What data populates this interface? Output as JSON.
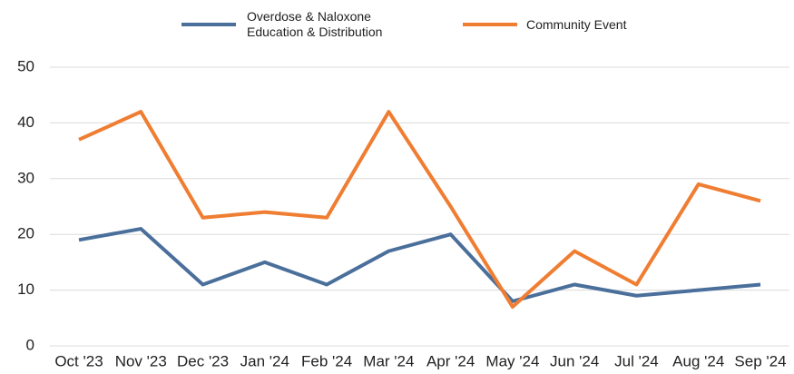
{
  "chart_data": {
    "type": "line",
    "categories": [
      "Oct '23",
      "Nov '23",
      "Dec '23",
      "Jan '24",
      "Feb '24",
      "Mar '24",
      "Apr '24",
      "May '24",
      "Jun '24",
      "Jul '24",
      "Aug '24",
      "Sep '24"
    ],
    "series": [
      {
        "name": "Overdose & Naloxone\nEducation & Distribution",
        "color": "#4a6f9b",
        "values": [
          19,
          21,
          11,
          15,
          11,
          17,
          20,
          8,
          11,
          9,
          10,
          11
        ]
      },
      {
        "name": "Community Event",
        "color": "#ef7d32",
        "values": [
          37,
          42,
          23,
          24,
          23,
          42,
          25,
          7,
          17,
          11,
          29,
          26
        ]
      }
    ],
    "ylim": [
      0,
      50
    ],
    "yticks": [
      0,
      10,
      20,
      30,
      40,
      50
    ],
    "grid": true,
    "legend": "top"
  }
}
